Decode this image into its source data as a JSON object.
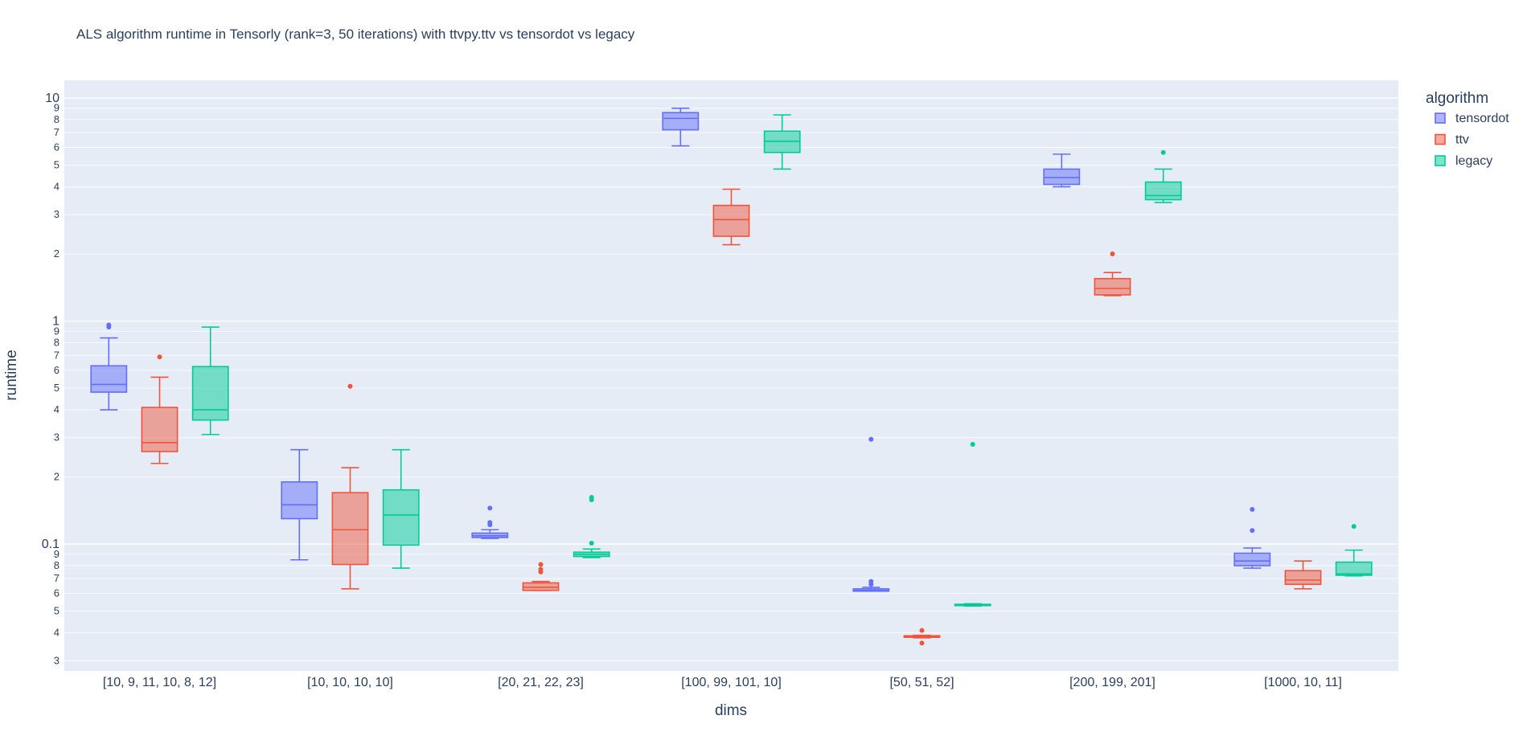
{
  "chart_data": {
    "type": "box",
    "title": "ALS algorithm runtime in Tensorly (rank=3, 50 iterations) with ttvpy.ttv vs tensordot vs legacy",
    "xlabel": "dims",
    "ylabel": "runtime",
    "yscale": "log",
    "ylim": [
      0.027,
      12.0
    ],
    "y_major_ticks": [
      {
        "value": 0.1,
        "label": "0.1"
      },
      {
        "value": 1,
        "label": "1"
      },
      {
        "value": 10,
        "label": "10"
      }
    ],
    "y_minor_ticks": [
      {
        "value": 0.03,
        "label": "3"
      },
      {
        "value": 0.04,
        "label": "4"
      },
      {
        "value": 0.05,
        "label": "5"
      },
      {
        "value": 0.06,
        "label": "6"
      },
      {
        "value": 0.07,
        "label": "7"
      },
      {
        "value": 0.08,
        "label": "8"
      },
      {
        "value": 0.09,
        "label": "9"
      },
      {
        "value": 0.2,
        "label": "2"
      },
      {
        "value": 0.3,
        "label": "3"
      },
      {
        "value": 0.4,
        "label": "4"
      },
      {
        "value": 0.5,
        "label": "5"
      },
      {
        "value": 0.6,
        "label": "6"
      },
      {
        "value": 0.7,
        "label": "7"
      },
      {
        "value": 0.8,
        "label": "8"
      },
      {
        "value": 0.9,
        "label": "9"
      },
      {
        "value": 2,
        "label": "2"
      },
      {
        "value": 3,
        "label": "3"
      },
      {
        "value": 4,
        "label": "4"
      },
      {
        "value": 5,
        "label": "5"
      },
      {
        "value": 6,
        "label": "6"
      },
      {
        "value": 7,
        "label": "7"
      },
      {
        "value": 8,
        "label": "8"
      },
      {
        "value": 9,
        "label": "9"
      }
    ],
    "categories": [
      "[10, 9, 11, 10, 8, 12]",
      "[10, 10, 10, 10]",
      "[20, 21, 22, 23]",
      "[100, 99, 101, 10]",
      "[50, 51, 52]",
      "[200, 199, 201]",
      "[1000, 10, 11]"
    ],
    "legend": {
      "title": "algorithm",
      "position": "top-right"
    },
    "grid": true,
    "series": [
      {
        "name": "tensordot",
        "color": "#636efa",
        "boxes": [
          {
            "min": 0.4,
            "q1": 0.48,
            "median": 0.52,
            "q3": 0.63,
            "max": 0.84,
            "outliers": [
              0.94,
              0.96
            ]
          },
          {
            "min": 0.085,
            "q1": 0.13,
            "median": 0.15,
            "q3": 0.19,
            "max": 0.265,
            "outliers": []
          },
          {
            "min": 0.106,
            "q1": 0.107,
            "median": 0.109,
            "q3": 0.112,
            "max": 0.116,
            "outliers": [
              0.122,
              0.125,
              0.145
            ]
          },
          {
            "min": 6.1,
            "q1": 7.2,
            "median": 8.1,
            "q3": 8.6,
            "max": 9.0,
            "outliers": []
          },
          {
            "min": 0.0615,
            "q1": 0.0615,
            "median": 0.062,
            "q3": 0.063,
            "max": 0.064,
            "outliers": [
              0.066,
              0.068,
              0.295
            ]
          },
          {
            "min": 4.0,
            "q1": 4.1,
            "median": 4.4,
            "q3": 4.8,
            "max": 5.6,
            "outliers": []
          },
          {
            "min": 0.078,
            "q1": 0.08,
            "median": 0.084,
            "q3": 0.091,
            "max": 0.096,
            "outliers": [
              0.115,
              0.143
            ]
          }
        ]
      },
      {
        "name": "ttv",
        "color": "#ef553b",
        "boxes": [
          {
            "min": 0.23,
            "q1": 0.26,
            "median": 0.285,
            "q3": 0.41,
            "max": 0.56,
            "outliers": [
              0.69
            ]
          },
          {
            "min": 0.063,
            "q1": 0.081,
            "median": 0.116,
            "q3": 0.17,
            "max": 0.22,
            "outliers": [
              0.51
            ]
          },
          {
            "min": 0.062,
            "q1": 0.062,
            "median": 0.064,
            "q3": 0.067,
            "max": 0.068,
            "outliers": [
              0.075,
              0.077,
              0.081
            ]
          },
          {
            "min": 2.2,
            "q1": 2.4,
            "median": 2.85,
            "q3": 3.3,
            "max": 3.9,
            "outliers": []
          },
          {
            "min": 0.038,
            "q1": 0.0382,
            "median": 0.0385,
            "q3": 0.0388,
            "max": 0.039,
            "outliers": [
              0.036,
              0.041
            ]
          },
          {
            "min": 1.3,
            "q1": 1.31,
            "median": 1.4,
            "q3": 1.55,
            "max": 1.65,
            "outliers": [
              2.0
            ]
          },
          {
            "min": 0.063,
            "q1": 0.066,
            "median": 0.069,
            "q3": 0.076,
            "max": 0.084,
            "outliers": []
          }
        ]
      },
      {
        "name": "legacy",
        "color": "#00cc96",
        "boxes": [
          {
            "min": 0.31,
            "q1": 0.36,
            "median": 0.4,
            "q3": 0.625,
            "max": 0.94,
            "outliers": []
          },
          {
            "min": 0.078,
            "q1": 0.099,
            "median": 0.135,
            "q3": 0.175,
            "max": 0.265,
            "outliers": []
          },
          {
            "min": 0.087,
            "q1": 0.088,
            "median": 0.09,
            "q3": 0.092,
            "max": 0.095,
            "outliers": [
              0.101,
              0.158,
              0.162
            ]
          },
          {
            "min": 4.8,
            "q1": 5.7,
            "median": 6.4,
            "q3": 7.1,
            "max": 8.4,
            "outliers": []
          },
          {
            "min": 0.0528,
            "q1": 0.053,
            "median": 0.0533,
            "q3": 0.0537,
            "max": 0.054,
            "outliers": [
              0.28
            ]
          },
          {
            "min": 3.4,
            "q1": 3.5,
            "median": 3.65,
            "q3": 4.2,
            "max": 4.8,
            "outliers": [
              5.7
            ]
          },
          {
            "min": 0.072,
            "q1": 0.0725,
            "median": 0.0735,
            "q3": 0.083,
            "max": 0.094,
            "outliers": [
              0.12
            ]
          }
        ]
      }
    ]
  }
}
